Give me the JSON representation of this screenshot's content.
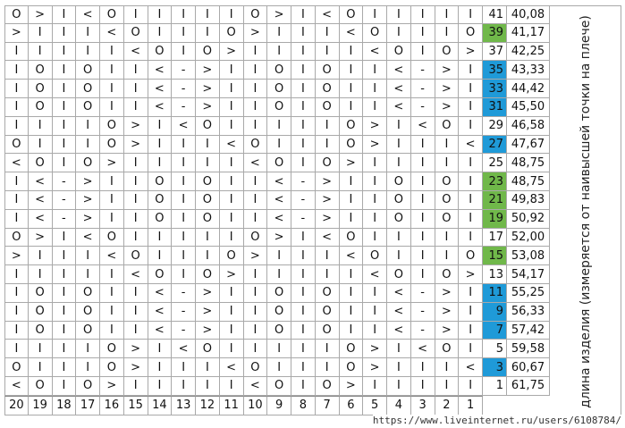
{
  "rows": [
    {
      "cells": [
        "O",
        ">",
        "I",
        "<",
        "O",
        "I",
        "I",
        "I",
        "I",
        "I",
        "O",
        ">",
        "I",
        "<",
        "O",
        "I",
        "I",
        "I",
        "I",
        "I"
      ],
      "num": "41",
      "length": "40,08",
      "color": "#ffffff"
    },
    {
      "cells": [
        ">",
        "I",
        "I",
        "I",
        "<",
        "O",
        "I",
        "I",
        "I",
        "O",
        ">",
        "I",
        "I",
        "I",
        "<",
        "O",
        "I",
        "I",
        "I",
        "O"
      ],
      "num": "39",
      "length": "41,17",
      "color": "#70b84a"
    },
    {
      "cells": [
        "I",
        "I",
        "I",
        "I",
        "I",
        "<",
        "O",
        "I",
        "O",
        ">",
        "I",
        "I",
        "I",
        "I",
        "I",
        "<",
        "O",
        "I",
        "O",
        ">"
      ],
      "num": "37",
      "length": "42,25",
      "color": "#ffffff"
    },
    {
      "cells": [
        "I",
        "O",
        "I",
        "O",
        "I",
        "I",
        "<",
        "-",
        ">",
        "I",
        "I",
        "O",
        "I",
        "O",
        "I",
        "I",
        "<",
        "-",
        ">",
        "I"
      ],
      "num": "35",
      "length": "43,33",
      "color": "#1f9ad8"
    },
    {
      "cells": [
        "I",
        "O",
        "I",
        "O",
        "I",
        "I",
        "<",
        "-",
        ">",
        "I",
        "I",
        "O",
        "I",
        "O",
        "I",
        "I",
        "<",
        "-",
        ">",
        "I"
      ],
      "num": "33",
      "length": "44,42",
      "color": "#1f9ad8"
    },
    {
      "cells": [
        "I",
        "O",
        "I",
        "O",
        "I",
        "I",
        "<",
        "-",
        ">",
        "I",
        "I",
        "O",
        "I",
        "O",
        "I",
        "I",
        "<",
        "-",
        ">",
        "I"
      ],
      "num": "31",
      "length": "45,50",
      "color": "#1f9ad8"
    },
    {
      "cells": [
        "I",
        "I",
        "I",
        "I",
        "O",
        ">",
        "I",
        "<",
        "O",
        "I",
        "I",
        "I",
        "I",
        "I",
        "O",
        ">",
        "I",
        "<",
        "O",
        "I"
      ],
      "num": "29",
      "length": "46,58",
      "color": "#ffffff"
    },
    {
      "cells": [
        "O",
        "I",
        "I",
        "I",
        "O",
        ">",
        "I",
        "I",
        "I",
        "<",
        "O",
        "I",
        "I",
        "I",
        "O",
        ">",
        "I",
        "I",
        "I",
        "<"
      ],
      "num": "27",
      "length": "47,67",
      "color": "#1f9ad8"
    },
    {
      "cells": [
        "<",
        "O",
        "I",
        "O",
        ">",
        "I",
        "I",
        "I",
        "I",
        "I",
        "<",
        "O",
        "I",
        "O",
        ">",
        "I",
        "I",
        "I",
        "I",
        "I"
      ],
      "num": "25",
      "length": "48,75",
      "color": "#ffffff"
    },
    {
      "cells": [
        "I",
        "<",
        "-",
        ">",
        "I",
        "I",
        "O",
        "I",
        "O",
        "I",
        "I",
        "<",
        "-",
        ">",
        "I",
        "I",
        "O",
        "I",
        "O",
        "I"
      ],
      "num": "23",
      "length": "48,75",
      "color": "#70b84a"
    },
    {
      "cells": [
        "I",
        "<",
        "-",
        ">",
        "I",
        "I",
        "O",
        "I",
        "O",
        "I",
        "I",
        "<",
        "-",
        ">",
        "I",
        "I",
        "O",
        "I",
        "O",
        "I"
      ],
      "num": "21",
      "length": "49,83",
      "color": "#70b84a"
    },
    {
      "cells": [
        "I",
        "<",
        "-",
        ">",
        "I",
        "I",
        "O",
        "I",
        "O",
        "I",
        "I",
        "<",
        "-",
        ">",
        "I",
        "I",
        "O",
        "I",
        "O",
        "I"
      ],
      "num": "19",
      "length": "50,92",
      "color": "#70b84a"
    },
    {
      "cells": [
        "O",
        ">",
        "I",
        "<",
        "O",
        "I",
        "I",
        "I",
        "I",
        "I",
        "O",
        ">",
        "I",
        "<",
        "O",
        "I",
        "I",
        "I",
        "I",
        "I"
      ],
      "num": "17",
      "length": "52,00",
      "color": "#ffffff"
    },
    {
      "cells": [
        ">",
        "I",
        "I",
        "I",
        "<",
        "O",
        "I",
        "I",
        "I",
        "O",
        ">",
        "I",
        "I",
        "I",
        "<",
        "O",
        "I",
        "I",
        "I",
        "O"
      ],
      "num": "15",
      "length": "53,08",
      "color": "#70b84a"
    },
    {
      "cells": [
        "I",
        "I",
        "I",
        "I",
        "I",
        "<",
        "O",
        "I",
        "O",
        ">",
        "I",
        "I",
        "I",
        "I",
        "I",
        "<",
        "O",
        "I",
        "O",
        ">"
      ],
      "num": "13",
      "length": "54,17",
      "color": "#ffffff"
    },
    {
      "cells": [
        "I",
        "O",
        "I",
        "O",
        "I",
        "I",
        "<",
        "-",
        ">",
        "I",
        "I",
        "O",
        "I",
        "O",
        "I",
        "I",
        "<",
        "-",
        ">",
        "I"
      ],
      "num": "11",
      "length": "55,25",
      "color": "#1f9ad8"
    },
    {
      "cells": [
        "I",
        "O",
        "I",
        "O",
        "I",
        "I",
        "<",
        "-",
        ">",
        "I",
        "I",
        "O",
        "I",
        "O",
        "I",
        "I",
        "<",
        "-",
        ">",
        "I"
      ],
      "num": "9",
      "length": "56,33",
      "color": "#1f9ad8"
    },
    {
      "cells": [
        "I",
        "O",
        "I",
        "O",
        "I",
        "I",
        "<",
        "-",
        ">",
        "I",
        "I",
        "O",
        "I",
        "O",
        "I",
        "I",
        "<",
        "-",
        ">",
        "I"
      ],
      "num": "7",
      "length": "57,42",
      "color": "#1f9ad8"
    },
    {
      "cells": [
        "I",
        "I",
        "I",
        "I",
        "O",
        ">",
        "I",
        "<",
        "O",
        "I",
        "I",
        "I",
        "I",
        "I",
        "O",
        ">",
        "I",
        "<",
        "O",
        "I"
      ],
      "num": "5",
      "length": "59,58",
      "color": "#ffffff"
    },
    {
      "cells": [
        "O",
        "I",
        "I",
        "I",
        "O",
        ">",
        "I",
        "I",
        "I",
        "<",
        "O",
        "I",
        "I",
        "I",
        "O",
        ">",
        "I",
        "I",
        "I",
        "<"
      ],
      "num": "3",
      "length": "60,67",
      "color": "#1f9ad8"
    },
    {
      "cells": [
        "<",
        "O",
        "I",
        "O",
        ">",
        "I",
        "I",
        "I",
        "I",
        "I",
        "<",
        "O",
        "I",
        "O",
        ">",
        "I",
        "I",
        "I",
        "I",
        "I"
      ],
      "num": "1",
      "length": "61,75",
      "color": "#ffffff"
    }
  ],
  "columns": [
    "20",
    "19",
    "18",
    "17",
    "16",
    "15",
    "14",
    "13",
    "12",
    "11",
    "10",
    "9",
    "8",
    "7",
    "6",
    "5",
    "4",
    "3",
    "2",
    "1"
  ],
  "side_label": "длина изделия (измеряется от наивысшей точки на плече)",
  "watermark": "https://www.liveinternet.ru/users/6108784/"
}
